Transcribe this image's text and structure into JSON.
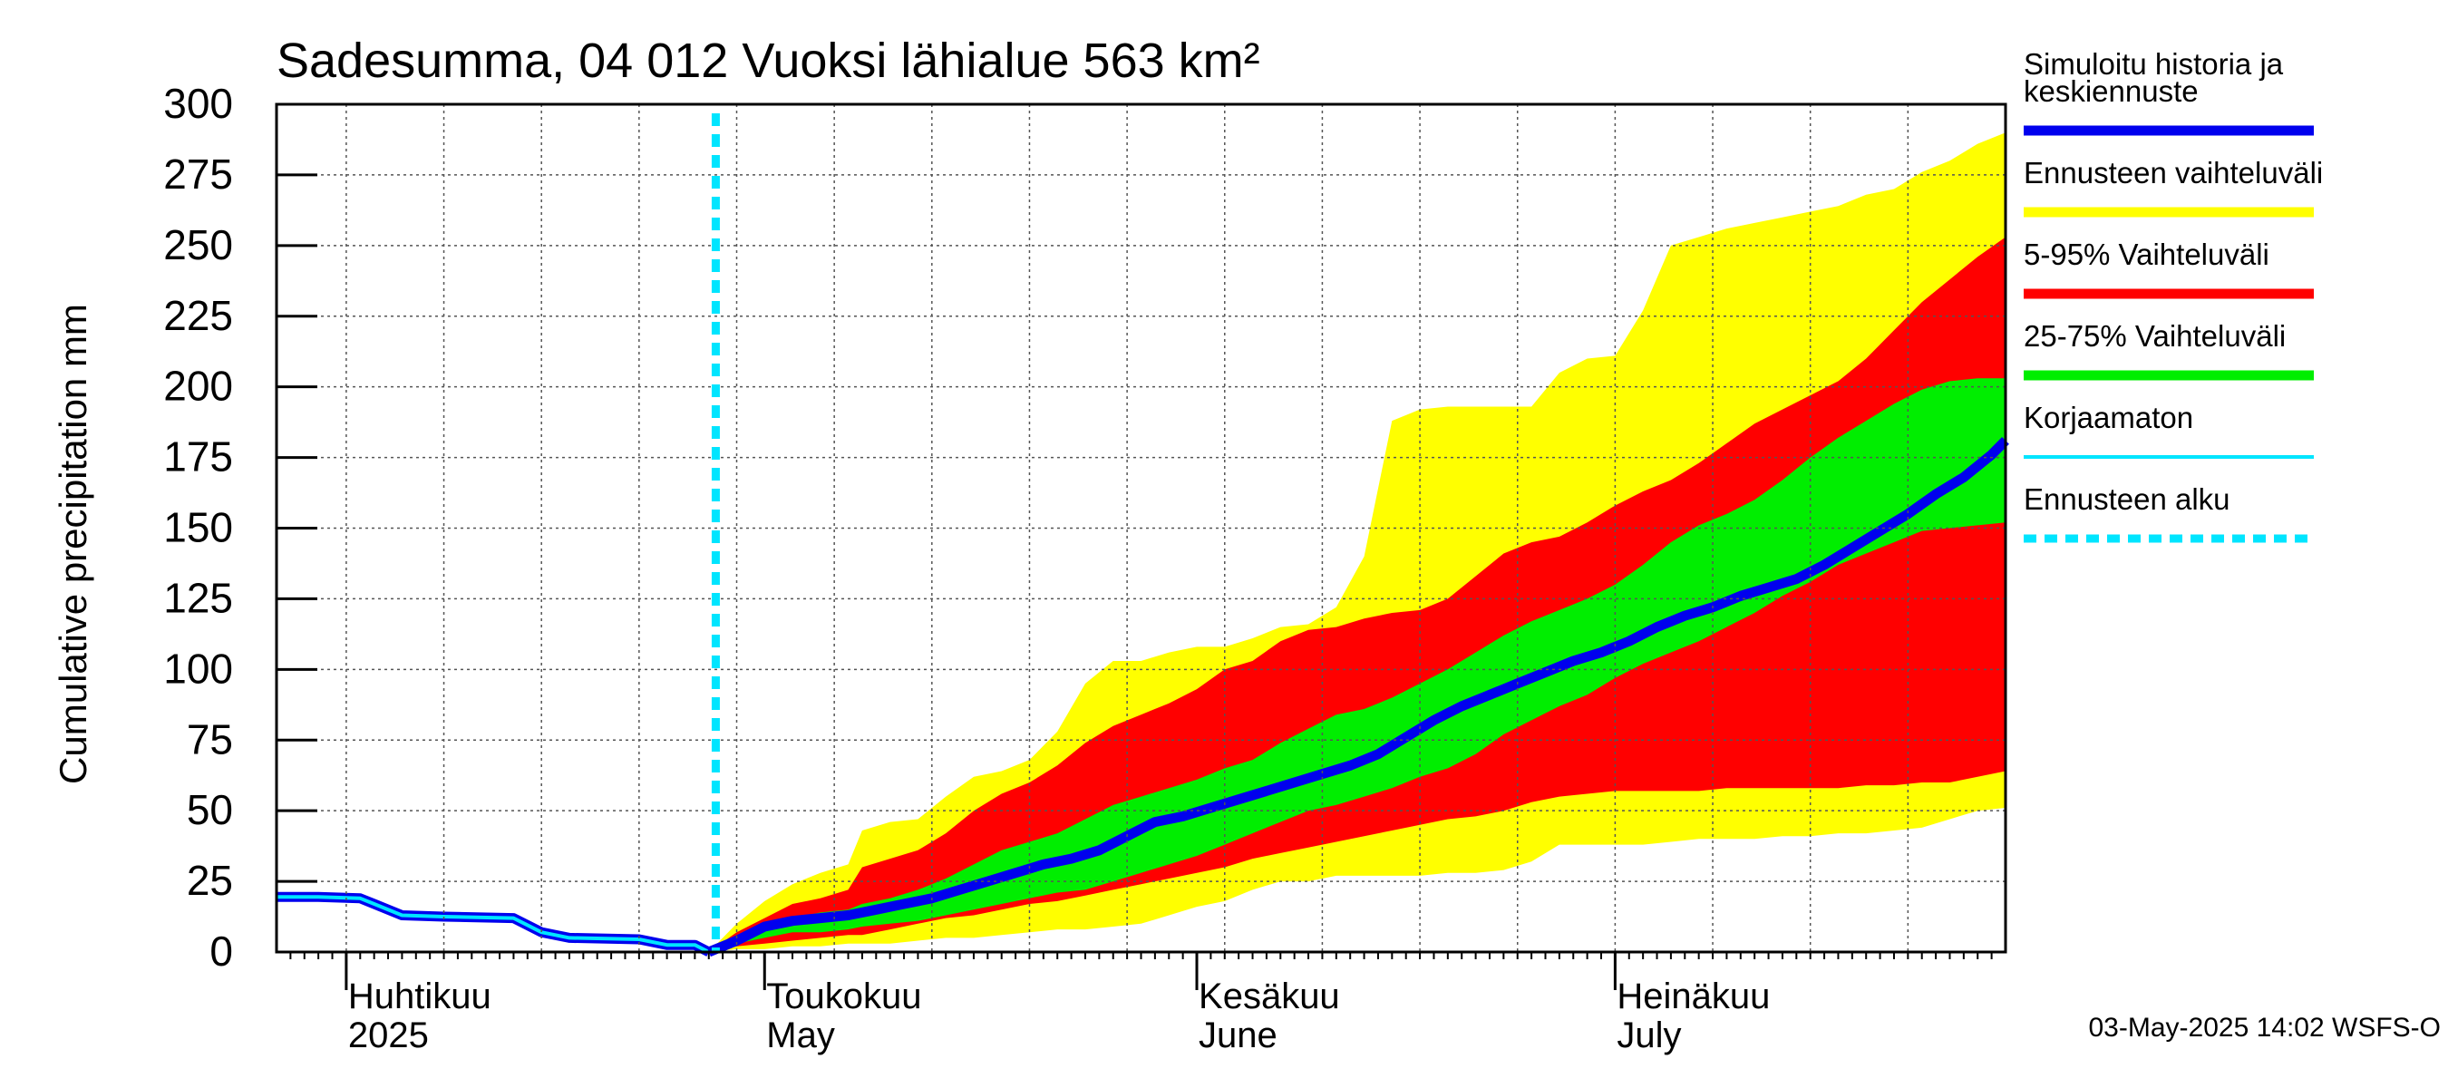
{
  "chart_data": {
    "type": "area",
    "title": "Sadesumma, 04 012 Vuoksi lähialue 563 km²",
    "ylabel": "Cumulative precipitation   mm",
    "xlabel": "",
    "ylim": [
      0,
      300
    ],
    "yticks": [
      0,
      25,
      50,
      75,
      100,
      125,
      150,
      175,
      200,
      225,
      250,
      275,
      300
    ],
    "x_unit": "days since 2025-03-27",
    "xlim": [
      0,
      124
    ],
    "month_labels": [
      {
        "top": "Huhtikuu",
        "bottom": "2025",
        "day": 5
      },
      {
        "top": "Toukokuu",
        "bottom": "May",
        "day": 35
      },
      {
        "top": "Kesäkuu",
        "bottom": "June",
        "day": 66
      },
      {
        "top": "Heinäkuu",
        "bottom": "July",
        "day": 96
      }
    ],
    "month_boundaries": [
      5,
      35,
      66,
      96
    ],
    "forecast_start_day": 31.5,
    "series": [
      {
        "name": "Ennusteen vaihteluväli",
        "color": "#ffff00",
        "kind": "band",
        "x": [
          31,
          33,
          35,
          37,
          39,
          41,
          42,
          44,
          46,
          48,
          50,
          52,
          54,
          56,
          58,
          60,
          62,
          64,
          66,
          68,
          70,
          72,
          74,
          76,
          78,
          80,
          82,
          84,
          86,
          88,
          90,
          92,
          94,
          96,
          98,
          100,
          102,
          104,
          106,
          108,
          110,
          112,
          114,
          116,
          118,
          120,
          122,
          124
        ],
        "lower": [
          0,
          1,
          1,
          2,
          2,
          3,
          3,
          3,
          4,
          5,
          5,
          6,
          7,
          8,
          8,
          9,
          10,
          13,
          16,
          18,
          22,
          25,
          25,
          27,
          27,
          27,
          27,
          28,
          28,
          29,
          32,
          38,
          38,
          38,
          38,
          39,
          40,
          40,
          40,
          41,
          41,
          42,
          42,
          43,
          44,
          47,
          50,
          51
        ],
        "upper": [
          0,
          10,
          18,
          24,
          28,
          31,
          43,
          46,
          47,
          55,
          62,
          64,
          68,
          78,
          95,
          103,
          103,
          106,
          108,
          108,
          111,
          115,
          116,
          122,
          140,
          188,
          192,
          193,
          193,
          193,
          193,
          205,
          210,
          211,
          227,
          250,
          253,
          256,
          258,
          260,
          262,
          264,
          268,
          270,
          276,
          280,
          286,
          290
        ]
      },
      {
        "name": "5-95% Vaihteluväli",
        "color": "#ff0000",
        "kind": "band",
        "x": [
          31,
          33,
          35,
          37,
          39,
          41,
          42,
          44,
          46,
          48,
          50,
          52,
          54,
          56,
          58,
          60,
          62,
          64,
          66,
          68,
          70,
          72,
          74,
          76,
          78,
          80,
          82,
          84,
          86,
          88,
          90,
          92,
          94,
          96,
          98,
          100,
          102,
          104,
          106,
          108,
          110,
          112,
          114,
          116,
          118,
          120,
          122,
          124
        ],
        "lower": [
          0,
          2,
          3,
          4,
          5,
          6,
          6,
          8,
          10,
          12,
          13,
          15,
          17,
          18,
          20,
          22,
          24,
          26,
          28,
          30,
          33,
          35,
          37,
          39,
          41,
          43,
          45,
          47,
          48,
          50,
          53,
          55,
          56,
          57,
          57,
          57,
          57,
          58,
          58,
          58,
          58,
          58,
          59,
          59,
          60,
          60,
          62,
          64
        ],
        "upper": [
          0,
          7,
          12,
          17,
          19,
          22,
          30,
          33,
          36,
          42,
          50,
          56,
          60,
          66,
          74,
          80,
          84,
          88,
          93,
          100,
          103,
          110,
          114,
          115,
          118,
          120,
          121,
          125,
          133,
          141,
          145,
          147,
          152,
          158,
          163,
          167,
          173,
          180,
          187,
          192,
          197,
          202,
          210,
          220,
          230,
          238,
          246,
          253
        ]
      },
      {
        "name": "25-75% Vaihteluväli",
        "color": "#00ee00",
        "kind": "band",
        "x": [
          31,
          33,
          35,
          37,
          39,
          41,
          42,
          44,
          46,
          48,
          50,
          52,
          54,
          56,
          58,
          60,
          62,
          64,
          66,
          68,
          70,
          72,
          74,
          76,
          78,
          80,
          82,
          84,
          86,
          88,
          90,
          92,
          94,
          96,
          98,
          100,
          102,
          104,
          106,
          108,
          110,
          112,
          114,
          116,
          118,
          120,
          122,
          124
        ],
        "lower": [
          0,
          3,
          5,
          7,
          7,
          8,
          9,
          10,
          11,
          13,
          15,
          17,
          19,
          21,
          22,
          25,
          28,
          31,
          34,
          38,
          42,
          46,
          50,
          52,
          55,
          58,
          62,
          65,
          70,
          77,
          82,
          87,
          91,
          97,
          102,
          106,
          110,
          115,
          120,
          126,
          131,
          137,
          141,
          145,
          149,
          150,
          151,
          152
        ],
        "upper": [
          0,
          6,
          9,
          12,
          14,
          15,
          17,
          19,
          22,
          26,
          31,
          36,
          39,
          42,
          47,
          52,
          55,
          58,
          61,
          65,
          68,
          74,
          79,
          84,
          86,
          90,
          95,
          100,
          106,
          112,
          117,
          121,
          125,
          130,
          137,
          145,
          151,
          155,
          160,
          167,
          175,
          182,
          188,
          194,
          199,
          202,
          203,
          203
        ]
      },
      {
        "name": "Simuloitu historia ja keskiennuste",
        "color": "#0000ee",
        "kind": "line",
        "x": [
          0,
          3,
          6,
          7,
          9,
          12,
          17,
          19,
          21,
          26,
          28,
          30,
          31,
          33,
          35,
          37,
          39,
          41,
          43,
          45,
          47,
          49,
          51,
          53,
          55,
          57,
          59,
          61,
          63,
          65,
          67,
          69,
          71,
          73,
          75,
          77,
          79,
          81,
          83,
          85,
          87,
          89,
          91,
          93,
          95,
          97,
          99,
          101,
          103,
          105,
          107,
          109,
          111,
          113,
          115,
          117,
          119,
          121,
          123,
          124
        ],
        "y": [
          19.5,
          19.5,
          19,
          17,
          13,
          12.5,
          12,
          7,
          5,
          4.5,
          2.5,
          2.5,
          0,
          4,
          9,
          11,
          12,
          13,
          15,
          17,
          19,
          22,
          25,
          28,
          31,
          33,
          36,
          41,
          46,
          48,
          51,
          54,
          57,
          60,
          63,
          66,
          70,
          76,
          82,
          87,
          91,
          95,
          99,
          103,
          106,
          110,
          115,
          119,
          122,
          126,
          129,
          132,
          137,
          143,
          149,
          155,
          162,
          168,
          176,
          181
        ]
      },
      {
        "name": "Korjaamaton",
        "color": "#00e5ff",
        "kind": "line",
        "x": [
          0,
          3,
          6,
          7,
          9,
          12,
          17,
          19,
          21,
          26,
          28,
          30,
          31
        ],
        "y": [
          19.5,
          19.5,
          19,
          17,
          13,
          12.5,
          12,
          7,
          5,
          4.5,
          2.5,
          2.5,
          0
        ]
      }
    ],
    "legend_position": "right",
    "grid": true
  },
  "legend": {
    "items": [
      {
        "line1": "Simuloitu historia ja",
        "line2": "keskiennuste",
        "color": "#0000ee",
        "style": "solid-thick"
      },
      {
        "line1": "Ennusteen vaihteluväli",
        "line2": "",
        "color": "#ffff00",
        "style": "solid-thick"
      },
      {
        "line1": "5-95% Vaihteluväli",
        "line2": "",
        "color": "#ff0000",
        "style": "solid-thick"
      },
      {
        "line1": "25-75% Vaihteluväli",
        "line2": "",
        "color": "#00ee00",
        "style": "solid-thick"
      },
      {
        "line1": "Korjaamaton",
        "line2": "",
        "color": "#00e5ff",
        "style": "solid-thin"
      },
      {
        "line1": "Ennusteen alku",
        "line2": "",
        "color": "#00e5ff",
        "style": "dashed"
      }
    ]
  },
  "footer": "03-May-2025 14:02 WSFS-O"
}
